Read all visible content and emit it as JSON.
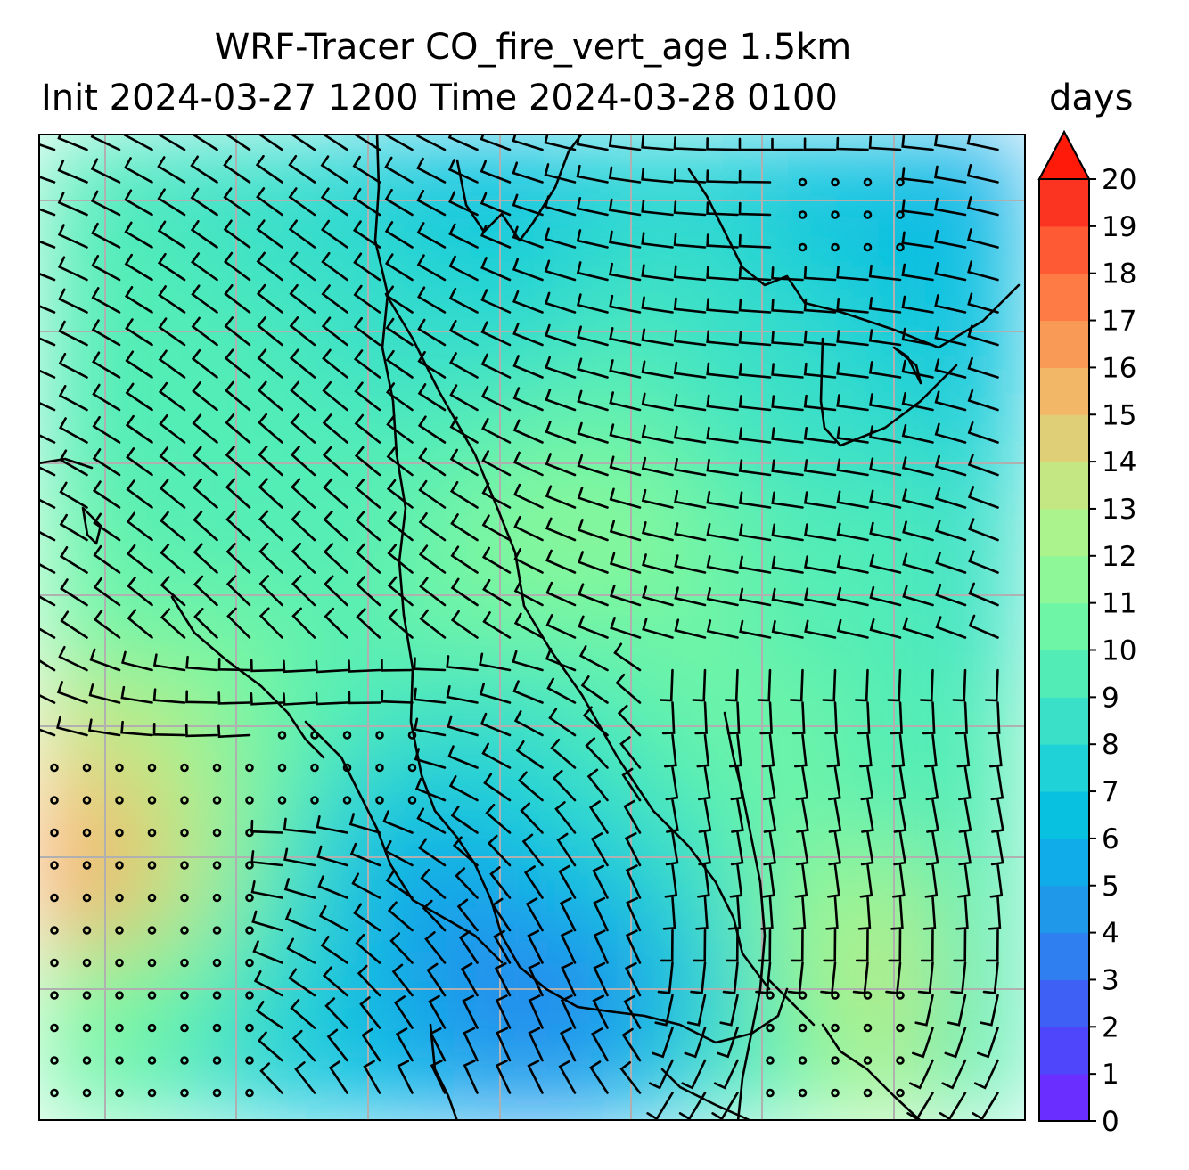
{
  "title": "WRF-Tracer CO_fire_vert_age 1.5km",
  "subtitle": "Init 2024-03-27 1200 Time 2024-03-28 0100",
  "chart_data": {
    "type": "heatmap",
    "variable": "CO_fire_vert_age",
    "level": "1.5km",
    "colorbar": {
      "units": "days",
      "ticks": [
        0,
        1,
        2,
        3,
        4,
        5,
        6,
        7,
        8,
        9,
        10,
        11,
        12,
        13,
        14,
        15,
        16,
        17,
        18,
        19,
        20
      ],
      "range": [
        0,
        20
      ],
      "extend": "max",
      "colors": [
        "#6a2fff",
        "#4f46fb",
        "#3f60f4",
        "#2f7ff0",
        "#1f98ea",
        "#10acea",
        "#08c0e0",
        "#1fd2d7",
        "#3ae0c8",
        "#52edb6",
        "#6ff5a6",
        "#8ef797",
        "#aaf38d",
        "#c4e683",
        "#dfd078",
        "#f2b868",
        "#fa9a57",
        "#fe7b45",
        "#fe5a33",
        "#fa3420",
        "#ff1a0a"
      ]
    },
    "field_grid": {
      "rows": 11,
      "cols": 11,
      "values": [
        [
          9,
          8,
          8,
          7,
          6,
          6,
          7,
          7,
          6,
          6,
          5
        ],
        [
          9,
          9,
          8,
          8,
          7,
          7,
          8,
          8,
          7,
          6,
          6
        ],
        [
          9,
          9,
          9,
          8,
          8,
          8,
          9,
          8,
          8,
          7,
          6
        ],
        [
          9,
          9,
          9,
          9,
          9,
          10,
          10,
          9,
          8,
          8,
          7
        ],
        [
          10,
          9,
          9,
          9,
          10,
          11,
          11,
          10,
          9,
          9,
          8
        ],
        [
          10,
          10,
          10,
          9,
          10,
          10,
          10,
          10,
          9,
          9,
          8
        ],
        [
          13,
          12,
          10,
          9,
          8,
          8,
          9,
          10,
          10,
          9,
          9
        ],
        [
          15,
          13,
          10,
          7,
          6,
          7,
          8,
          9,
          10,
          9,
          9
        ],
        [
          16,
          13,
          9,
          6,
          4,
          5,
          6,
          8,
          11,
          12,
          9
        ],
        [
          11,
          10,
          8,
          6,
          4,
          3,
          4,
          7,
          11,
          13,
          9
        ],
        [
          10,
          9,
          7,
          6,
          5,
          4,
          5,
          8,
          10,
          12,
          9
        ]
      ]
    },
    "gridlines": true,
    "overlays": [
      "wind barbs",
      "coastlines"
    ]
  }
}
